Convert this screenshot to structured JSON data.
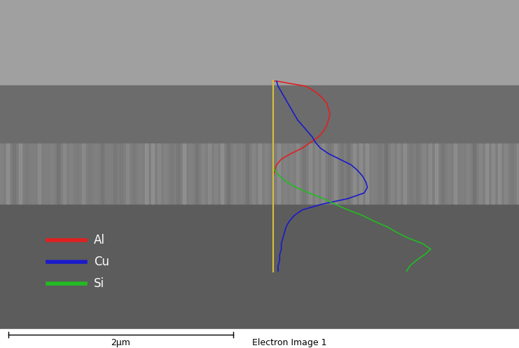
{
  "chart_data": {
    "type": "line",
    "tick_labels": false,
    "x": [
      0,
      0.05,
      0.1,
      0.15,
      0.2,
      0.25,
      0.3,
      0.35,
      0.4,
      0.45,
      0.5,
      0.55,
      0.6,
      0.65,
      0.7,
      0.75,
      0.8,
      0.85,
      0.9,
      0.95,
      1.0,
      1.05,
      1.1,
      1.15,
      1.2,
      1.25,
      1.3,
      1.35,
      1.4,
      1.45,
      1.5,
      1.55,
      1.6,
      1.65,
      1.7
    ],
    "xlim": [
      0,
      1.7
    ],
    "ylim": [
      0,
      100
    ],
    "series": [
      {
        "name": "Al",
        "color": "#e02020",
        "values": [
          0,
          20,
          26,
          30,
          33,
          34,
          35,
          34,
          33,
          31,
          28,
          23,
          18,
          11,
          5,
          2,
          1,
          0,
          0,
          0,
          0,
          0,
          0,
          0,
          0,
          0,
          0,
          0,
          0,
          0,
          0,
          0,
          0,
          0,
          0
        ]
      },
      {
        "name": "Cu",
        "color": "#1a1acc",
        "values": [
          2,
          3,
          5,
          7,
          9,
          11,
          13,
          15,
          18,
          21,
          24,
          26,
          29,
          34,
          41,
          48,
          52,
          55,
          57,
          58,
          56,
          46,
          30,
          18,
          13,
          10,
          8,
          7,
          6,
          5,
          5,
          4,
          4,
          3,
          3
        ]
      },
      {
        "name": "Si",
        "color": "#22bb22",
        "values": [
          0,
          0,
          0,
          0,
          0,
          0,
          0,
          0,
          0,
          0,
          0,
          0,
          0,
          0,
          0,
          0,
          1,
          4,
          8,
          14,
          22,
          31,
          38,
          46,
          55,
          62,
          70,
          76,
          83,
          92,
          97,
          93,
          88,
          84,
          82
        ]
      }
    ],
    "scale_bar": "2μm",
    "caption": "Electron Image 1"
  }
}
